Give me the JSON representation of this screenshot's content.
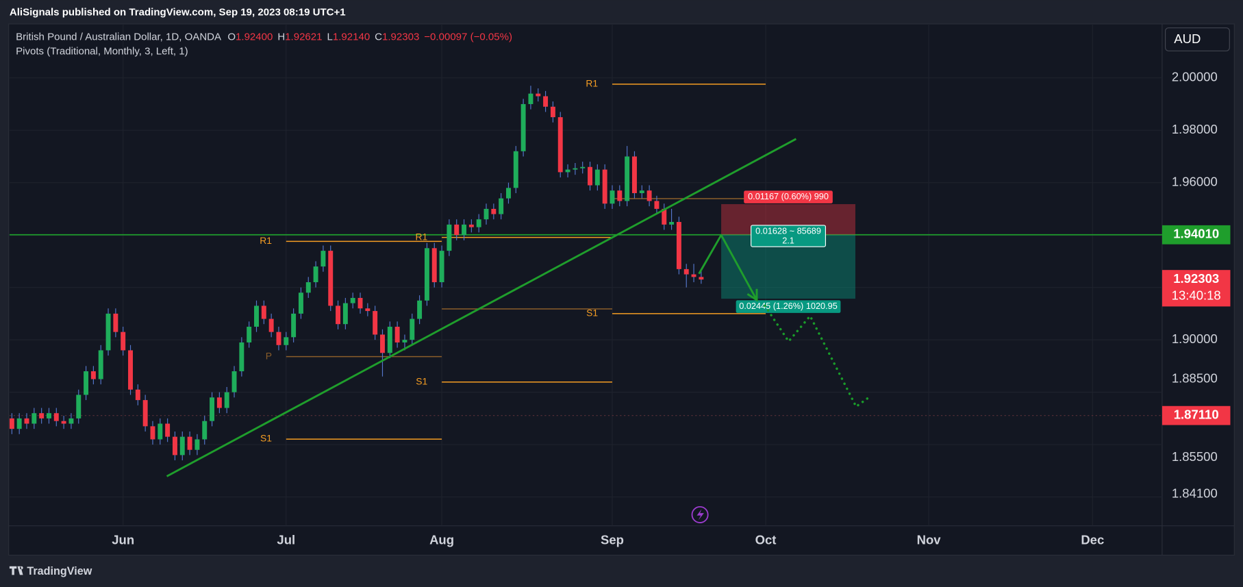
{
  "header": {
    "publisher": "AliSignals published on TradingView.com, Sep 19, 2023 08:19 UTC+1",
    "brand": "TradingView",
    "currency": "AUD"
  },
  "chart_data": {
    "type": "candlestick",
    "title": "British Pound / Australian Dollar, 1D, OANDA",
    "indicator": "Pivots (Traditional, Monthly, 3, Left, 1)",
    "ohlc_letters": [
      "O",
      "H",
      "L",
      "C"
    ],
    "ohlc_labels": [
      "1.92400",
      "1.92621",
      "1.92140",
      "1.92303"
    ],
    "change_label": "−0.00097 (−0.05%)",
    "up_color": "#1fae5b",
    "down_color": "#f23645",
    "wick_color": "#5577cc",
    "xlim": [
      -0.32,
      155.19
    ],
    "ylim": [
      1.829,
      2.0206
    ],
    "xticks": [
      {
        "value": 15,
        "label": "Jun"
      },
      {
        "value": 37,
        "label": "Jul"
      },
      {
        "value": 58,
        "label": "Aug"
      },
      {
        "value": 81,
        "label": "Sep"
      },
      {
        "value": 101.7,
        "label": "Oct"
      },
      {
        "value": 123.7,
        "label": "Nov"
      },
      {
        "value": 145.8,
        "label": "Dec"
      }
    ],
    "yticks": [
      {
        "value": 2.0,
        "label": "2.00000"
      },
      {
        "value": 1.98,
        "label": "1.98000"
      },
      {
        "value": 1.96,
        "label": "1.96000"
      },
      {
        "value": 1.9,
        "label": "1.90000"
      },
      {
        "value": 1.885,
        "label": "1.88500"
      },
      {
        "value": 1.855,
        "label": "1.85500"
      },
      {
        "value": 1.841,
        "label": "1.84100"
      }
    ],
    "ygrid": [
      1.84,
      1.86,
      1.88,
      1.9,
      1.92,
      1.94,
      1.96,
      1.98,
      2.0
    ],
    "grid": true,
    "ohlc": [
      [
        1.87,
        1.872,
        1.864,
        1.866
      ],
      [
        1.866,
        1.872,
        1.864,
        1.87
      ],
      [
        1.87,
        1.872,
        1.866,
        1.868
      ],
      [
        1.868,
        1.874,
        1.866,
        1.872
      ],
      [
        1.872,
        1.874,
        1.868,
        1.87
      ],
      [
        1.87,
        1.874,
        1.868,
        1.872
      ],
      [
        1.872,
        1.874,
        1.867,
        1.869
      ],
      [
        1.869,
        1.871,
        1.866,
        1.868
      ],
      [
        1.868,
        1.872,
        1.866,
        1.87
      ],
      [
        1.87,
        1.881,
        1.868,
        1.879
      ],
      [
        1.879,
        1.89,
        1.877,
        1.888
      ],
      [
        1.888,
        1.89,
        1.883,
        1.885
      ],
      [
        1.885,
        1.898,
        1.883,
        1.896
      ],
      [
        1.896,
        1.912,
        1.894,
        1.91
      ],
      [
        1.91,
        1.912,
        1.901,
        1.903
      ],
      [
        1.903,
        1.905,
        1.894,
        1.896
      ],
      [
        1.896,
        1.898,
        1.879,
        1.881
      ],
      [
        1.881,
        1.883,
        1.875,
        1.877
      ],
      [
        1.877,
        1.879,
        1.865,
        1.867
      ],
      [
        1.867,
        1.869,
        1.86,
        1.862
      ],
      [
        1.862,
        1.87,
        1.86,
        1.868
      ],
      [
        1.868,
        1.87,
        1.861,
        1.863
      ],
      [
        1.863,
        1.865,
        1.854,
        1.856
      ],
      [
        1.856,
        1.865,
        1.854,
        1.863
      ],
      [
        1.863,
        1.865,
        1.856,
        1.858
      ],
      [
        1.858,
        1.864,
        1.856,
        1.862
      ],
      [
        1.862,
        1.871,
        1.86,
        1.869
      ],
      [
        1.869,
        1.88,
        1.867,
        1.878
      ],
      [
        1.878,
        1.88,
        1.872,
        1.874
      ],
      [
        1.874,
        1.882,
        1.872,
        1.88
      ],
      [
        1.88,
        1.89,
        1.878,
        1.888
      ],
      [
        1.888,
        1.901,
        1.886,
        1.899
      ],
      [
        1.899,
        1.907,
        1.897,
        1.905
      ],
      [
        1.905,
        1.915,
        1.903,
        1.913
      ],
      [
        1.913,
        1.915,
        1.906,
        1.908
      ],
      [
        1.908,
        1.91,
        1.901,
        1.903
      ],
      [
        1.903,
        1.905,
        1.896,
        1.898
      ],
      [
        1.898,
        1.903,
        1.896,
        1.901
      ],
      [
        1.901,
        1.912,
        1.899,
        1.91
      ],
      [
        1.91,
        1.92,
        1.908,
        1.918
      ],
      [
        1.918,
        1.924,
        1.916,
        1.922
      ],
      [
        1.922,
        1.93,
        1.92,
        1.928
      ],
      [
        1.928,
        1.936,
        1.926,
        1.934
      ],
      [
        1.934,
        1.936,
        1.911,
        1.913
      ],
      [
        1.913,
        1.915,
        1.904,
        1.906
      ],
      [
        1.906,
        1.916,
        1.904,
        1.914
      ],
      [
        1.914,
        1.918,
        1.912,
        1.916
      ],
      [
        1.916,
        1.918,
        1.91,
        1.912
      ],
      [
        1.912,
        1.914,
        1.909,
        1.911
      ],
      [
        1.911,
        1.913,
        1.9,
        1.902
      ],
      [
        1.902,
        1.904,
        1.886,
        1.895
      ],
      [
        1.895,
        1.907,
        1.893,
        1.905
      ],
      [
        1.905,
        1.907,
        1.897,
        1.899
      ],
      [
        1.899,
        1.902,
        1.896,
        1.9
      ],
      [
        1.9,
        1.91,
        1.898,
        1.908
      ],
      [
        1.908,
        1.917,
        1.906,
        1.915
      ],
      [
        1.915,
        1.937,
        1.913,
        1.935
      ],
      [
        1.935,
        1.937,
        1.92,
        1.922
      ],
      [
        1.922,
        1.936,
        1.92,
        1.934
      ],
      [
        1.934,
        1.946,
        1.932,
        1.944
      ],
      [
        1.944,
        1.946,
        1.938,
        1.94
      ],
      [
        1.94,
        1.946,
        1.938,
        1.944
      ],
      [
        1.944,
        1.946,
        1.941,
        1.943
      ],
      [
        1.943,
        1.948,
        1.941,
        1.946
      ],
      [
        1.946,
        1.952,
        1.944,
        1.95
      ],
      [
        1.95,
        1.952,
        1.946,
        1.948
      ],
      [
        1.948,
        1.956,
        1.946,
        1.954
      ],
      [
        1.954,
        1.96,
        1.952,
        1.958
      ],
      [
        1.958,
        1.974,
        1.956,
        1.972
      ],
      [
        1.972,
        1.992,
        1.97,
        1.99
      ],
      [
        1.99,
        1.997,
        1.988,
        1.994
      ],
      [
        1.994,
        1.996,
        1.991,
        1.993
      ],
      [
        1.993,
        1.995,
        1.987,
        1.989
      ],
      [
        1.989,
        1.991,
        1.983,
        1.985
      ],
      [
        1.985,
        1.987,
        1.962,
        1.964
      ],
      [
        1.964,
        1.967,
        1.962,
        1.965
      ],
      [
        1.965,
        1.9675,
        1.963,
        1.9655
      ],
      [
        1.9655,
        1.968,
        1.9635,
        1.966
      ],
      [
        1.966,
        1.968,
        1.957,
        1.959
      ],
      [
        1.959,
        1.967,
        1.957,
        1.965
      ],
      [
        1.965,
        1.967,
        1.95,
        1.952
      ],
      [
        1.952,
        1.959,
        1.95,
        1.957
      ],
      [
        1.957,
        1.959,
        1.951,
        1.953
      ],
      [
        1.953,
        1.974,
        1.951,
        1.97
      ],
      [
        1.97,
        1.972,
        1.954,
        1.956
      ],
      [
        1.956,
        1.959,
        1.954,
        1.957
      ],
      [
        1.957,
        1.959,
        1.951,
        1.953
      ],
      [
        1.953,
        1.955,
        1.948,
        1.95
      ],
      [
        1.95,
        1.952,
        1.942,
        1.944
      ],
      [
        1.944,
        1.95,
        1.942,
        1.945
      ],
      [
        1.945,
        1.947,
        1.925,
        1.927
      ],
      [
        1.927,
        1.929,
        1.92,
        1.925
      ],
      [
        1.925,
        1.929,
        1.922,
        1.924
      ],
      [
        1.924,
        1.92621,
        1.9214,
        1.92303
      ]
    ],
    "pivots": [
      {
        "label": "R1",
        "value": 1.9376,
        "x": [
          37,
          58
        ],
        "color": "#f59d23"
      },
      {
        "label": "P",
        "value": 1.8936,
        "x": [
          37,
          58
        ],
        "color": "#8b5e2a"
      },
      {
        "label": "S1",
        "value": 1.8621,
        "x": [
          37,
          58
        ],
        "color": "#f59d23"
      },
      {
        "label": "R1",
        "value": 1.9391,
        "x": [
          58,
          81
        ],
        "color": "#f59d23"
      },
      {
        "label": null,
        "value": 1.9118,
        "x": [
          58,
          81
        ],
        "color": "#8b5e2a"
      },
      {
        "label": "S1",
        "value": 1.8839,
        "x": [
          58,
          81
        ],
        "color": "#f59d23"
      },
      {
        "label": "R1",
        "value": 1.9976,
        "x": [
          81,
          101.7
        ],
        "color": "#f59d23"
      },
      {
        "label": null,
        "value": 1.9539,
        "x": [
          81,
          101.7
        ],
        "color": "#8b5e2a"
      },
      {
        "label": "S1",
        "value": 1.91,
        "x": [
          81,
          101.7
        ],
        "color": "#f59d23"
      }
    ],
    "trendline": {
      "x": [
        20.9,
        105.8
      ],
      "y": [
        1.8479,
        1.9767
      ],
      "color": "#1f9e2c"
    },
    "hlines": [
      {
        "value": 1.9401,
        "color": "#1f9e2c",
        "dashed": false
      },
      {
        "value": 1.8711,
        "color": "#5a3038",
        "dashed": true
      }
    ],
    "price_tags": [
      {
        "value": 1.9401,
        "label": "1.94010",
        "color": "#1f9e2c"
      },
      {
        "value": 1.92303,
        "label": "1.92303",
        "countdown": "13:40:18",
        "color": "#f23645"
      },
      {
        "value": 1.8711,
        "label": "1.87110",
        "color": "#f23645"
      }
    ],
    "position": {
      "x": [
        95.7,
        113.8
      ],
      "entry": 1.9401,
      "stop": 1.9518,
      "target": 1.9157,
      "stop_label": "0.01167 (0.60%) 990",
      "center_label": [
        "0.01628 ~ 85689",
        "2.1"
      ],
      "target_label": "0.02445 (1.26%) 1020.95"
    },
    "projection": {
      "x": [
        92.7,
        95.7,
        100.5
      ],
      "y": [
        1.9252,
        1.94,
        1.9152
      ],
      "color": "#1f9e2c"
    },
    "projection_dotted": {
      "x": [
        101.6,
        104.8,
        107.7,
        113.9,
        116.0
      ],
      "y": [
        1.913,
        1.8994,
        1.9091,
        1.8745,
        1.8788
      ],
      "color": "#1a9c2a"
    }
  }
}
